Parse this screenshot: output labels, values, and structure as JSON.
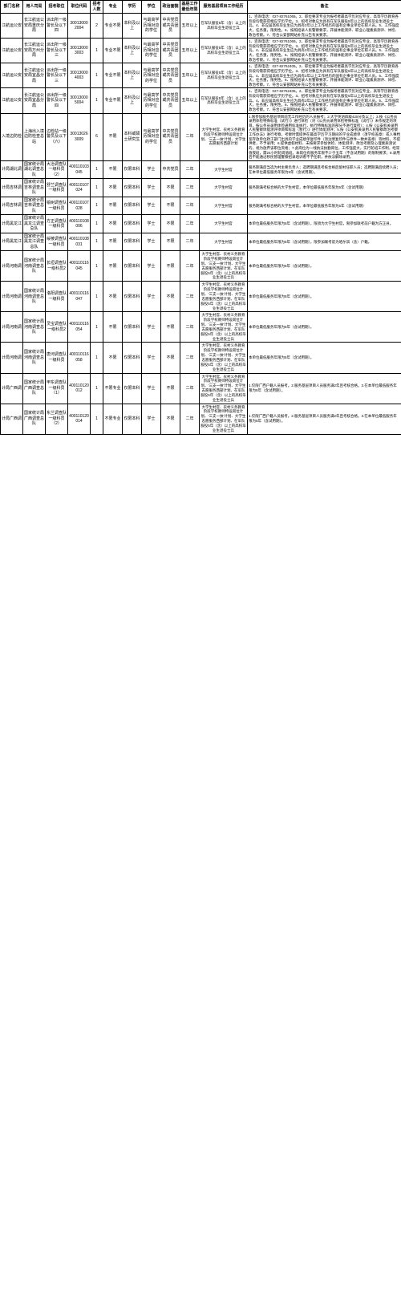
{
  "headers": [
    "部门名称",
    "用人司局",
    "招考职位",
    "职位代码",
    "招考人数",
    "专业",
    "学历",
    "学位",
    "政治面貌",
    "基层工作最低年限",
    "服务基层项目工作经历",
    "备注"
  ],
  "rows": [
    {
      "dept": "江航运公安",
      "unit": "长江航运公安局重庆分局",
      "pos": "派出所一级警长及以下四",
      "code": "300130002004",
      "num": "2",
      "major": "专业不限",
      "edu": "本科及以上",
      "deg": "与最高学历相对应的学位",
      "poli": "中共党员或共青团员",
      "year": "五年以上",
      "svc": "在军队服役5年（含）以上的高校毕业生退役士兵",
      "note": "1、咨询电话：027-82761069。2、职位要求专业为报考者最高学历对应专业，高等学历教育各阶段均需获得相应学历学位。3、招考对象应为具有在军队服役5年以上的高校毕业生退役士兵。4、非应届高校毕业生应为具有2年以上工作经历的国有企事业单位在职人员。5、工作强度大，任务重，限男性。6、按照招录人民警察要求，开展体能测评、职业心理素质测评、体检、政治考察。7、符合公安部网站补充公告有关要求。"
    },
    {
      "dept": "江航运公安",
      "unit": "长江航运公安局万州分局",
      "pos": "派出所一级警长及以下三",
      "code": "300130003003",
      "num": "1",
      "major": "专业不限",
      "edu": "本科及以上",
      "deg": "与最高学历相对应的学位",
      "poli": "中共党员或共青团员",
      "year": "五年以上",
      "svc": "在军队服役5年（含）以上的高校毕业生退役士兵",
      "note": "1、咨询电话：027-82761069。2、职位要求专业为报考者最高学历对应专业，高等学历教育各阶段均需获得相应学历学位。3、招考对象应为具有在军队服役5年以上的高校毕业生退役士兵。4、非应届高校毕业生应为具有2年以上工作经历的国有企事业单位在职人员。5、工作强度大，任务重，限男性。6、按照招录人民警察要求，开展体能测评、职业心理素质测评、体检、政治考察。7、符合公安部网站补充公告有关要求。"
    },
    {
      "dept": "江航运公安",
      "unit": "长江航运公安局宜昌分局",
      "pos": "派出所一级警长及以下三",
      "code": "300130004003",
      "num": "1",
      "major": "专业不限",
      "edu": "本科及以上",
      "deg": "与最高学历相对应的学位",
      "poli": "中共党员或共青团员",
      "year": "五年以上",
      "svc": "在军队服役5年（含）以上的高校毕业生退役士兵",
      "note": "1、咨询电话：027-82762405。2、职位要求专业为报考者最高学历对应专业，高等学历教育各阶段均需获得相应学历学位。3、招考对象应为具有在军队服役5年以上的高校毕业生退役士兵。4、非应届高校毕业生应为具有2年以上工作经历的国有企事业单位在职人员。5、工作强度大，任务重，限男性。6、按照招录人民警察要求，开展体能测评、职业心理素质测评、体检、政治考察。7、符合公安部网站补充公告有关要求。"
    },
    {
      "dept": "江航运公安",
      "unit": "长江航运公安局宜昌分局",
      "pos": "派出所一级警长及以下四",
      "code": "300130005004",
      "num": "1",
      "major": "专业不限",
      "edu": "本科及以上",
      "deg": "与最高学历相对应的学位",
      "poli": "中共党员或共青团员",
      "year": "五年以上",
      "svc": "在军队服役5年（含）以上的高校毕业生退役士兵",
      "note": "1、咨询电话：027-82762405。2、职位要求专业为报考者最高学历对应专业，高等学历教育各阶段均需获得相应学历学位。3、招考对象应为具有在军队服役5年以上的高校毕业生退役士兵。4、非应届高校毕业生应为具有2年以上工作经历的国有企事业单位在职人员。5、工作强度大，任务重，限男性。6、按照招录人民警察要求，开展体能测评、职业心理素质测评、体检、政治考察。7、符合公安部网站补充公告有关要求。"
    },
    {
      "dept": "入境边防检",
      "unit": "上海出入境边防检查总站",
      "pos": "边检站一级警员及以下（六）",
      "code": "300130263009",
      "num": "6",
      "major": "不限",
      "edu": "本科或硕士研究生",
      "deg": "与最高学历相对应的学位",
      "poli": "中共党员或共青团员",
      "year": "二年",
      "svc": "大学生村官、农村义务教育阶段学校教师特设岗位计划、'三支一扶'计划、大学生志愿服务西部计划",
      "note": "1.限参加服务基层项目前无工作经历的人员报考；2.大学英语四级425分及以上；3.按《公务员录用体检特殊标准（试行）》进行体检（对《公务员录用体检特殊标准（试行）》未作规定的项目，按公务员录用体检通用标准执行，执行特殊标准的部分不进行复检）；4.按《公安机关录用人民警察体能测评项目和标准（暂行）》进行体能测评；5.按《公安机关录用人民警察政治考察工作办法》进行考察，考察时需提供在最高学历学习期间的学业成绩单（须学校盖章）或人事档案存放单位政工部门出具的学业成绩单复印件（须注明复印件与原件一致并盖章）等材料，不提供者，不予录用；6.提供虚假材料、未按要求参加体检、体能测评、政治考察及心理素质测试的，视为放弃该职位资格；7.此岗位为一线执法执勤岗位，工作强度大，实行轮班工作制，经常值夜班，需24小时轮岗值班。本岗位有服务年限不少于五年（不含试用期）的限制要求；8.录用后不能通过移民管理警察招录培训者不予任职，并依法解除录用。"
    },
    {
      "dept": "计局湖北调",
      "unit": "国家统计局湖北调查总队",
      "pos": "大冶调查队一级科员（2）",
      "code": "400110103045",
      "num": "1",
      "major": "不限",
      "edu": "仅限本科",
      "deg": "学士",
      "poli": "中共党员",
      "year": "二年",
      "svc": "大学生村官",
      "note": "服务期满后当选为村主要负责人；选聘期满且考核合格后留村任职人员；选聘期满后续聘人员；在本单位最低服务年限为5年（含试用期）。"
    },
    {
      "dept": "计局吉林调",
      "unit": "国家统计局吉林调查总队",
      "pos": "舒兰调查队一级科员",
      "code": "400110107024",
      "num": "1",
      "major": "不限",
      "edu": "仅限本科",
      "deg": "学士",
      "poli": "不限",
      "year": "二年",
      "svc": "大学生村官",
      "note": "服务期满考核合格的大学生村官，本单位最低服务年限为5年（含试用期）"
    },
    {
      "dept": "计局吉林调",
      "unit": "国家统计局吉林调查总队",
      "pos": "榆树调查队一级科员",
      "code": "400110107028",
      "num": "1",
      "major": "不限",
      "edu": "仅限本科",
      "deg": "学士",
      "poli": "不限",
      "year": "二年",
      "svc": "大学生村官",
      "note": "服务期满考核合格的大学生村官，本单位最低服务年限为5年（含试用期）"
    },
    {
      "dept": "计局黑龙江",
      "unit": "国家统计局黑龙江调查总队",
      "pos": "方正调查队一级科员",
      "code": "400110108006",
      "num": "1",
      "major": "不限",
      "edu": "仅限本科",
      "deg": "学士",
      "poli": "不限",
      "year": "二年",
      "svc": "大学生村官",
      "note": "本单位最低服务年限为5年（含试用期），限须为大学生村官，限参加联考前户籍为方正县。"
    },
    {
      "dept": "计局黑龙江",
      "unit": "国家统计局黑龙江调查总队",
      "pos": "绥棱调查队一级科员",
      "code": "400110108031",
      "num": "1",
      "major": "不限",
      "edu": "仅限本科",
      "deg": "学士",
      "poli": "不限",
      "year": "二年",
      "svc": "大学生村官",
      "note": "本单位最低服务年限为5年（含试用期），限参加联考前为哈尔滨（含）户籍。"
    },
    {
      "dept": "计局河南调",
      "unit": "国家统计局河南调查总队",
      "pos": "长垣调查队一级科员2",
      "code": "400110116045",
      "num": "1",
      "major": "不限",
      "edu": "仅限本科",
      "deg": "学士",
      "poli": "不限",
      "year": "二年",
      "svc": "大学生村官、农村义务教育阶段学校教师特设岗位计划、'三支一扶'计划、大学生志愿服务西部计划、在军队服役5年（含）以上的高校毕业生退役士兵",
      "note": "本单位最低服务年限为5年（含试用期）。"
    },
    {
      "dept": "计局河南调",
      "unit": "国家统计局河南调查总队",
      "pos": "洛阳调查队一级科员",
      "code": "400110116047",
      "num": "1",
      "major": "不限",
      "edu": "仅限本科",
      "deg": "学士",
      "poli": "不限",
      "year": "二年",
      "svc": "大学生村官、农村义务教育阶段学校教师特设岗位计划、'三支一扶'计划、大学生志愿服务西部计划、在军队服役5年（含）以上的高校毕业生退役士兵",
      "note": "本单位最低服务年限为5年（含试用期）。"
    },
    {
      "dept": "计局河南调",
      "unit": "国家统计局河南调查总队",
      "pos": "灵宝调查队一级科员2",
      "code": "400110116054",
      "num": "1",
      "major": "不限",
      "edu": "仅限本科",
      "deg": "学士",
      "poli": "不限",
      "year": "二年",
      "svc": "大学生村官、农村义务教育阶段学校教师特设岗位计划、'三支一扶'计划、大学生志愿服务西部计划、在军队服役5年（含）以上的高校毕业生退役士兵",
      "note": "本单位最低服务年限为5年（含试用期）。"
    },
    {
      "dept": "计局河南调",
      "unit": "国家统计局河南调查总队",
      "pos": "唐河调查队一级科员",
      "code": "400110116058",
      "num": "1",
      "major": "不限",
      "edu": "仅限本科",
      "deg": "学士",
      "poli": "不限",
      "year": "二年",
      "svc": "大学生村官、农村义务教育阶段学校教师特设岗位计划、'三支一扶'计划、大学生志愿服务西部计划、在军队服役5年（含）以上的高校毕业生退役士兵",
      "note": "本单位最低服务年限为5年（含试用期）。"
    },
    {
      "dept": "计局广西调",
      "unit": "国家统计局广西调查总队",
      "pos": "甲东调查队一级科员（1）",
      "code": "400110120012",
      "num": "1",
      "major": "不限专业",
      "edu": "仅限本科",
      "deg": "学士",
      "poli": "不限",
      "year": "二年",
      "svc": "大学生村官、农村义务教育阶段学校教师特设岗位计划、'三支一扶'计划、大学生志愿服务西部计划、在军队服役5年（含）以上的高校毕业生退役士兵",
      "note": "1.仅限广西户籍人员报考。2.服务基层项目人员服务满2年且考核合格。3.在本单位最低服务年限为5年（含试用期）。"
    },
    {
      "dept": "计局广西调",
      "unit": "国家统计局广西调查总队",
      "pos": "东兰调查队一级科员（2）",
      "code": "400110120014",
      "num": "1",
      "major": "不限专业",
      "edu": "仅限本科",
      "deg": "学士",
      "poli": "不限",
      "year": "二年",
      "svc": "大学生村官、农村义务教育阶段学校教师特设岗位计划、'三支一扶'计划、大学生志愿服务西部计划、在军队服役5年（含）以上的高校毕业生退役士兵",
      "note": "1.仅限广西户籍人员报考。2.服务基层项目人员服务满2年且考核合格。3.在本单位最低服务年限为5年（含试用期）。"
    }
  ]
}
